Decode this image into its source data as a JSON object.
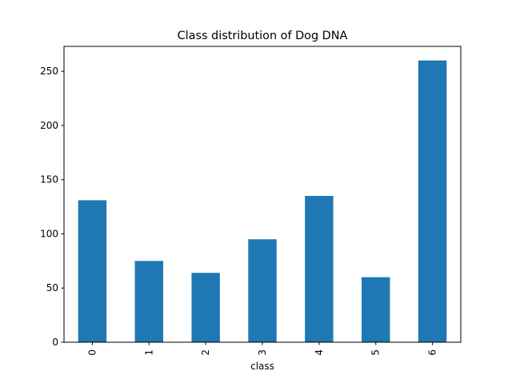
{
  "chart_data": {
    "type": "bar",
    "title": "Class distribution of Dog DNA",
    "xlabel": "class",
    "ylabel": "",
    "categories": [
      "0",
      "1",
      "2",
      "3",
      "4",
      "5",
      "6"
    ],
    "values": [
      131,
      75,
      64,
      95,
      135,
      60,
      260
    ],
    "ylim": [
      0,
      273
    ],
    "yticks": [
      0,
      50,
      100,
      150,
      200,
      250
    ],
    "grid": false,
    "legend": "none",
    "bar_color": "#1f77b4"
  }
}
